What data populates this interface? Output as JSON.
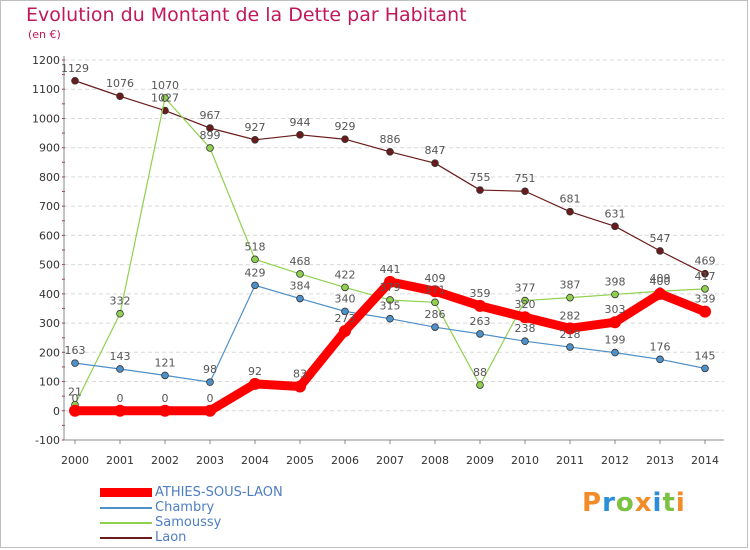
{
  "chart_data": {
    "type": "line",
    "title": "Evolution du Montant de la Dette par Habitant",
    "subtitle": "(en €)",
    "xlabel": "",
    "ylabel": "",
    "ylim": [
      -100,
      1200
    ],
    "yticks": [
      -100,
      0,
      100,
      200,
      300,
      400,
      500,
      600,
      700,
      800,
      900,
      1000,
      1100,
      1200
    ],
    "x": [
      "2000",
      "2001",
      "2002",
      "2003",
      "2004",
      "2005",
      "2006",
      "2007",
      "2008",
      "2009",
      "2010",
      "2011",
      "2012",
      "2013",
      "2014"
    ],
    "grid": "horizontal",
    "legend_position": "bottom-left",
    "series": [
      {
        "name": "Laon",
        "color": "#6b1b1b",
        "values": [
          1129,
          1076,
          1027,
          967,
          927,
          944,
          929,
          886,
          847,
          755,
          751,
          681,
          631,
          547,
          469
        ]
      },
      {
        "name": "Samoussy",
        "color": "#8fd14f",
        "values": [
          21,
          332,
          1070,
          899,
          518,
          468,
          422,
          379,
          371,
          88,
          377,
          387,
          398,
          409,
          417
        ]
      },
      {
        "name": "Chambry",
        "color": "#4e90c8",
        "values": [
          163,
          143,
          121,
          98,
          429,
          384,
          340,
          315,
          286,
          263,
          238,
          218,
          199,
          176,
          145
        ]
      },
      {
        "name": "ATHIES-SOUS-LAON",
        "color": "#ff0000",
        "values": [
          0,
          0,
          0,
          0,
          92,
          83,
          273,
          441,
          409,
          359,
          320,
          282,
          303,
          400,
          339
        ]
      }
    ]
  },
  "legend": {
    "items": [
      {
        "name": "ATHIES-SOUS-LAON",
        "color": "#ff0000"
      },
      {
        "name": "Chambry",
        "color": "#4e90c8"
      },
      {
        "name": "Samoussy",
        "color": "#8fd14f"
      },
      {
        "name": "Laon",
        "color": "#6b1b1b"
      }
    ]
  },
  "brand": {
    "letters": [
      "P",
      "r",
      "o",
      "x",
      "i",
      "t",
      "i"
    ],
    "colors": [
      "#f28c28",
      "#2a8fd6",
      "#7cc242",
      "#f28c28",
      "#2a8fd6",
      "#7cc242",
      "#f28c28"
    ]
  }
}
